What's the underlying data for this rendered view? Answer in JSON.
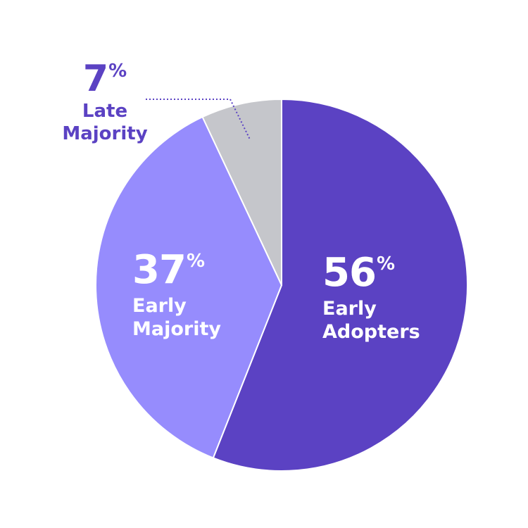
{
  "chart_data": {
    "type": "pie",
    "slices": [
      {
        "key": "early-adopters",
        "label": "Early Adopters",
        "label_lines": [
          "Early",
          "Adopters"
        ],
        "value": 56,
        "display": "56",
        "unit": "%",
        "color": "#5b42c3"
      },
      {
        "key": "early-majority",
        "label": "Early Majority",
        "label_lines": [
          "Early",
          "Majority"
        ],
        "value": 37,
        "display": "37",
        "unit": "%",
        "color": "#968cfd"
      },
      {
        "key": "late-majority",
        "label": "Late Majority",
        "label_lines": [
          "Late",
          "Majority"
        ],
        "value": 7,
        "display": "7",
        "unit": "%",
        "color": "#c5c6cb"
      }
    ],
    "start_angle": "12 o'clock",
    "direction": "clockwise",
    "slice_border_color": "#ffffff",
    "callout_color": "#5b42c3",
    "legend": "none"
  }
}
